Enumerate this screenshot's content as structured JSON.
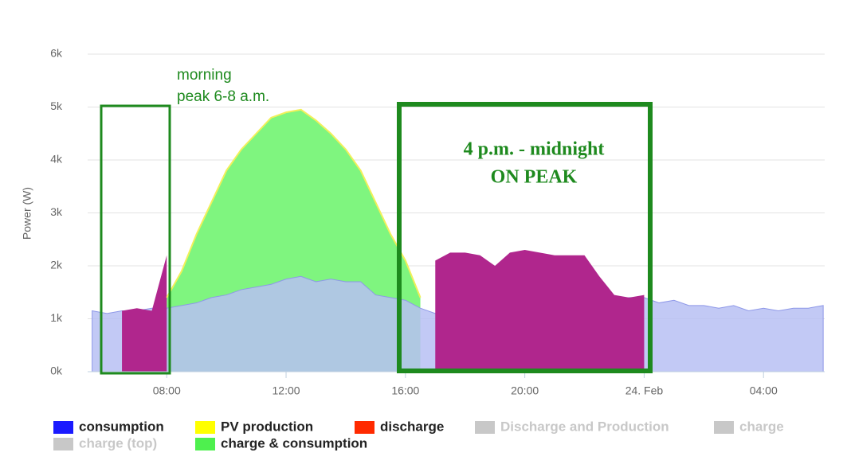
{
  "chart_data": {
    "type": "area",
    "y_label": "Power (W)",
    "x": [
      5.5,
      6,
      6.5,
      7,
      7.5,
      8,
      8.5,
      9,
      9.5,
      10,
      10.5,
      11,
      11.5,
      12,
      12.5,
      13,
      13.5,
      14,
      14.5,
      15,
      15.5,
      16,
      16.5,
      17,
      17.5,
      18,
      18.5,
      19,
      19.5,
      20,
      20.5,
      21,
      21.5,
      22,
      22.5,
      23,
      23.5,
      24,
      24.5,
      25,
      25.5,
      26,
      26.5,
      27,
      27.5,
      28,
      28.5,
      29,
      29.5,
      30
    ],
    "xlim": [
      5.35,
      30.05
    ],
    "xticks": [
      {
        "value": 8,
        "label": "08:00"
      },
      {
        "value": 12,
        "label": "12:00"
      },
      {
        "value": 16,
        "label": "16:00"
      },
      {
        "value": 20,
        "label": "20:00"
      },
      {
        "value": 24,
        "label": "24. Feb"
      },
      {
        "value": 28,
        "label": "04:00"
      }
    ],
    "ylim": [
      0,
      6000
    ],
    "yticks": [
      {
        "value": 0,
        "label": "0k"
      },
      {
        "value": 1000,
        "label": "1k"
      },
      {
        "value": 2000,
        "label": "2k"
      },
      {
        "value": 3000,
        "label": "3k"
      },
      {
        "value": 4000,
        "label": "4k"
      },
      {
        "value": 5000,
        "label": "5k"
      },
      {
        "value": 6000,
        "label": "6k"
      }
    ],
    "grid": true,
    "series": [
      {
        "name": "consumption",
        "color": "#1a1aff",
        "fill": "#b7bff3",
        "style": "area",
        "visible": true,
        "values": [
          1150,
          1100,
          1150,
          1150,
          1200,
          1200,
          1250,
          1300,
          1400,
          1450,
          1550,
          1600,
          1650,
          1750,
          1800,
          1700,
          1750,
          1700,
          1700,
          1450,
          1400,
          1350,
          1200,
          1100,
          1200,
          1200,
          1200,
          1200,
          1200,
          1200,
          1200,
          1200,
          1200,
          1250,
          1300,
          1350,
          1400,
          1400,
          1300,
          1350,
          1250,
          1250,
          1200,
          1250,
          1150,
          1200,
          1150,
          1200,
          1200,
          1250
        ]
      },
      {
        "name": "PV production",
        "color": "#ffff00",
        "fill": "#f2f05a",
        "style": "line",
        "visible": true,
        "values": [
          null,
          null,
          null,
          null,
          null,
          1400,
          1900,
          2600,
          3200,
          3800,
          4200,
          4500,
          4800,
          4900,
          4950,
          4750,
          4500,
          4200,
          3800,
          3200,
          2600,
          2100,
          1400,
          null,
          null,
          null,
          null,
          null,
          null,
          null,
          null,
          null,
          null,
          null,
          null,
          null,
          null,
          null,
          null,
          null,
          null,
          null,
          null,
          null,
          null,
          null,
          null,
          null,
          null,
          null
        ]
      },
      {
        "name": "discharge",
        "color": "#ff2a00",
        "fill": "#b0268d",
        "style": "area",
        "visible": true,
        "values": [
          null,
          null,
          1150,
          1200,
          1150,
          2200,
          null,
          null,
          null,
          null,
          null,
          null,
          null,
          null,
          null,
          null,
          null,
          null,
          null,
          null,
          null,
          null,
          null,
          2100,
          2250,
          2250,
          2200,
          2000,
          2250,
          2300,
          2250,
          2200,
          2200,
          2200,
          1800,
          1450,
          1400,
          1450,
          null,
          null,
          null,
          null,
          null,
          null,
          null,
          null,
          null,
          null,
          null,
          null
        ]
      },
      {
        "name": "Discharge and Production",
        "color": "#c8c8c8",
        "visible": false
      },
      {
        "name": "charge",
        "color": "#c8c8c8",
        "visible": false
      },
      {
        "name": "charge (top)",
        "color": "#c8c8c8",
        "visible": false
      },
      {
        "name": "charge & consumption",
        "color": "#4ef04e",
        "fill": "#7ff57f",
        "style": "area",
        "visible": true,
        "values": [
          null,
          null,
          null,
          null,
          null,
          1400,
          1900,
          2600,
          3200,
          3800,
          4200,
          4500,
          4800,
          4900,
          4950,
          4750,
          4500,
          4200,
          3800,
          3200,
          2600,
          2100,
          1400,
          null,
          null,
          null,
          null,
          null,
          null,
          null,
          null,
          null,
          null,
          null,
          null,
          null,
          null,
          null,
          null,
          null,
          null,
          null,
          null,
          null,
          null,
          null,
          null,
          null,
          null,
          null
        ]
      }
    ],
    "annotations": [
      "morning",
      "peak 6-8 a.m.",
      "4 p.m. - midnight",
      "ON PEAK"
    ]
  }
}
